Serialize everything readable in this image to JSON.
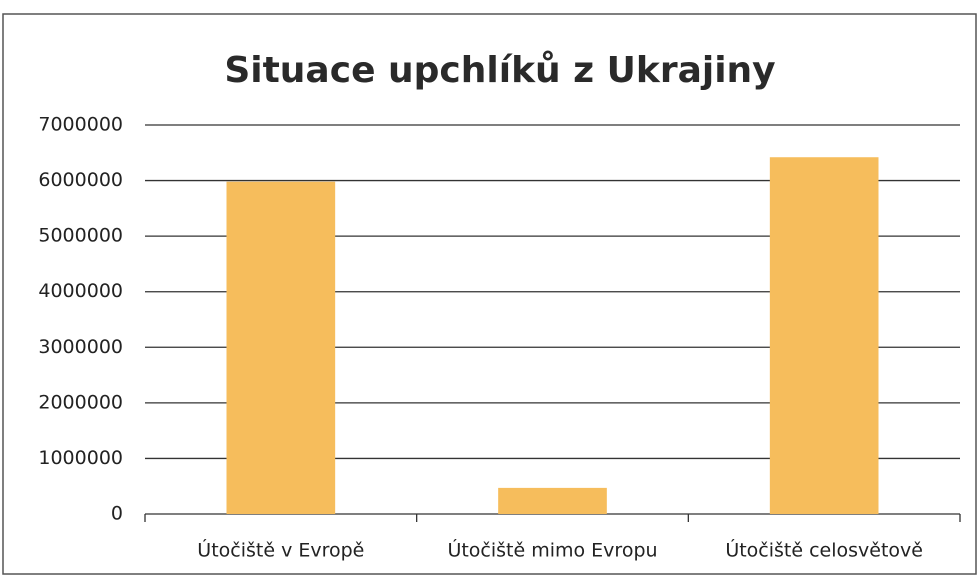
{
  "chart_data": {
    "type": "bar",
    "title": "Situace upchlíků z Ukrajiny",
    "categories": [
      "Útočiště v Evropě",
      "Útočiště mimo Evropu",
      "Útočiště celosvětově"
    ],
    "values": [
      5980000,
      470000,
      6420000
    ],
    "color": "#f6bd5c",
    "ylim": [
      0,
      7000000
    ],
    "yticks": [
      0,
      1000000,
      2000000,
      3000000,
      4000000,
      5000000,
      6000000,
      7000000
    ],
    "grid": true
  }
}
